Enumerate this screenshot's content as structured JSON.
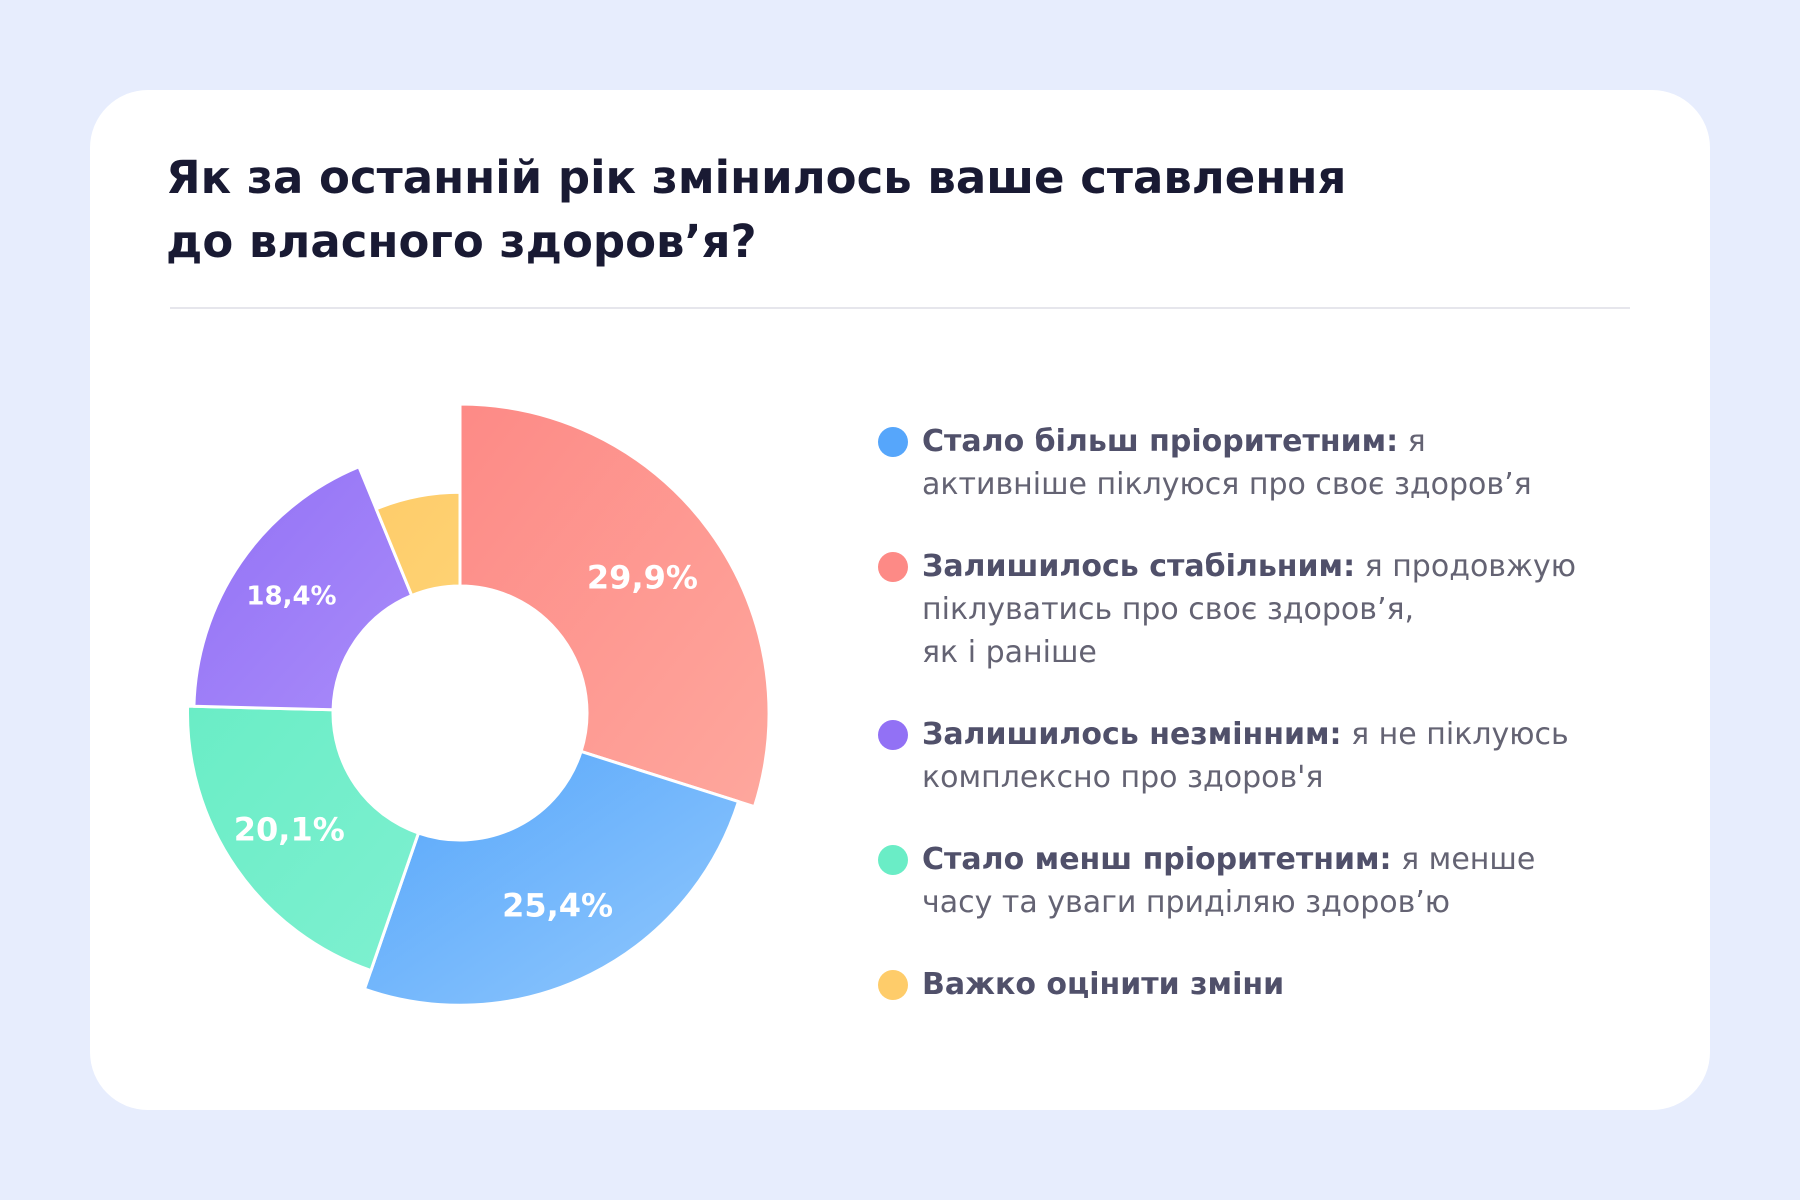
{
  "title_lines": [
    "Як за останній рік змінилось ваше ставлення",
    "до власного здоров’я?"
  ],
  "chart_data": {
    "type": "pie",
    "variant": "donut",
    "unit": "%",
    "slices": [
      {
        "value": 29.9,
        "label": "29,9%",
        "name": "Залишилось стабільним",
        "color": "#fd8a86",
        "color2": "#fea79d"
      },
      {
        "value": 25.4,
        "label": "25,4%",
        "name": "Стало більш пріоритетним",
        "color": "#56a6fb",
        "color2": "#91c8fc"
      },
      {
        "value": 20.1,
        "label": "20,1%",
        "name": "Стало менш пріоритетним",
        "color": "#6aedc6",
        "color2": "#7ef0d0"
      },
      {
        "value": 18.4,
        "label": "18,4%",
        "name": "Залишилось незмінним",
        "color": "#9271f5",
        "color2": "#a98bfa"
      },
      {
        "value": 6.2,
        "label": "",
        "name": "Важко оцінити зміни",
        "color": "#fecc6a",
        "color2": "#fed273"
      }
    ]
  },
  "legend": [
    {
      "bold": "Стало більш пріоритетним:",
      "lines": [
        " я",
        "активніше піклуюся про своє здоров’я"
      ],
      "color": "#56a6fb"
    },
    {
      "bold": "Залишилось стабільним:",
      "lines": [
        " я продовжую",
        "піклуватись про своє здоров’я,",
        "як і раніше"
      ],
      "color": "#fd8a86"
    },
    {
      "bold": "Залишилось незмінним:",
      "lines": [
        " я не піклуюсь",
        "комплексно про здоров'я"
      ],
      "color": "#9271f5"
    },
    {
      "bold": "Стало менш пріоритетним:",
      "lines": [
        " я менше",
        "часу та уваги приділяю здоров’ю"
      ],
      "color": "#6aedc6"
    },
    {
      "bold": "Важко оцінити зміни",
      "lines": [],
      "color": "#fecc6a"
    }
  ]
}
